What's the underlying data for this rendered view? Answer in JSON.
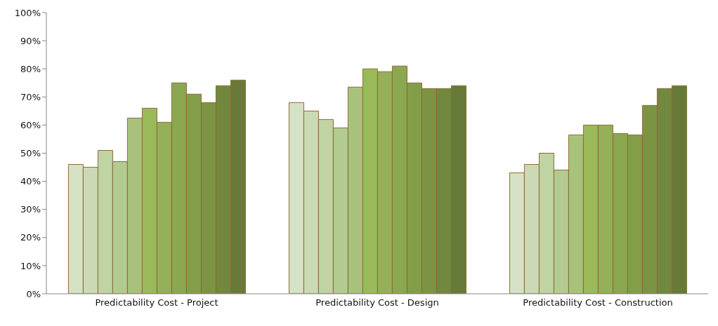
{
  "chart_data": {
    "type": "bar",
    "categories": [
      "Predictability Cost  - Project",
      "Predictability Cost  - Design",
      "Predictability Cost  - Construction"
    ],
    "ylim": [
      0,
      100
    ],
    "yticks": [
      {
        "value": 0,
        "label": "0%"
      },
      {
        "value": 10,
        "label": "10%"
      },
      {
        "value": 20,
        "label": "20%"
      },
      {
        "value": 30,
        "label": "30%"
      },
      {
        "value": 40,
        "label": "40%"
      },
      {
        "value": 50,
        "label": "50%"
      },
      {
        "value": 60,
        "label": "60%"
      },
      {
        "value": 70,
        "label": "70%"
      },
      {
        "value": 80,
        "label": "80%"
      },
      {
        "value": 90,
        "label": "90%"
      },
      {
        "value": 100,
        "label": "100%"
      }
    ],
    "grid": false,
    "legend": false,
    "series": [
      {
        "color": "#d5e2c5",
        "values": [
          46,
          68,
          43
        ]
      },
      {
        "color": "#cbdab4",
        "values": [
          45,
          65,
          46
        ]
      },
      {
        "color": "#bfd3a3",
        "values": [
          51,
          62,
          50
        ]
      },
      {
        "color": "#b2cb90",
        "values": [
          47,
          59,
          44
        ]
      },
      {
        "color": "#a8c27c",
        "values": [
          62.5,
          73.5,
          56.5
        ]
      },
      {
        "color": "#9aba59",
        "values": [
          66,
          80,
          60
        ]
      },
      {
        "color": "#94b058",
        "values": [
          61,
          79,
          60
        ]
      },
      {
        "color": "#8ba750",
        "values": [
          75,
          81,
          57
        ]
      },
      {
        "color": "#839e48",
        "values": [
          71,
          75,
          56.5
        ]
      },
      {
        "color": "#7b9444",
        "values": [
          68,
          73,
          67
        ]
      },
      {
        "color": "#71883e",
        "values": [
          74,
          73,
          73
        ]
      },
      {
        "color": "#677a38",
        "values": [
          76,
          74,
          74
        ]
      }
    ]
  }
}
